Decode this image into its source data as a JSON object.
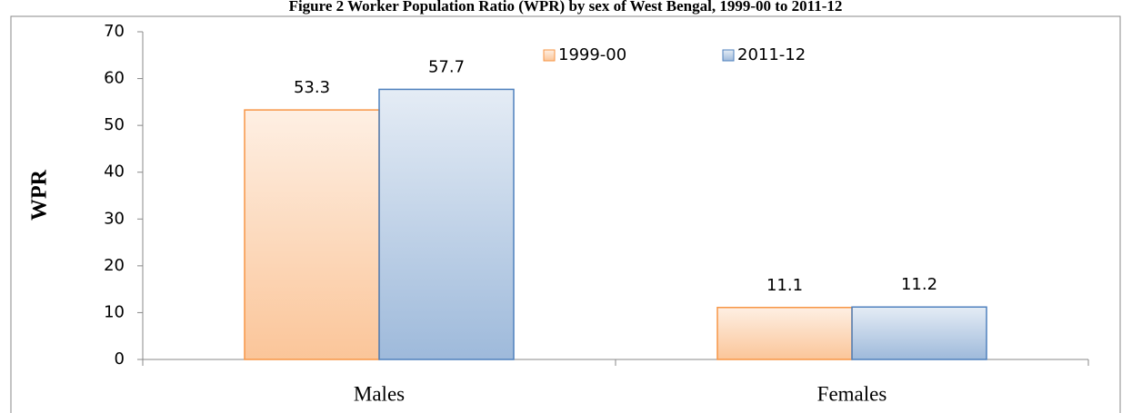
{
  "chart_data": {
    "type": "bar",
    "title": "Figure 2 Worker Population Ratio (WPR) by sex of West Bengal, 1999-00 to 2011-12",
    "y_label": "WPR",
    "categories": [
      "Males",
      "Females"
    ],
    "series": [
      {
        "name": "1999-00",
        "color": "#f79646",
        "values": [
          53.3,
          11.1
        ]
      },
      {
        "name": "2011-12",
        "color": "#4f81bd",
        "values": [
          57.7,
          11.2
        ]
      }
    ],
    "ylim": [
      0,
      70
    ],
    "yticks": [
      0,
      10,
      20,
      30,
      40,
      50,
      60,
      70
    ],
    "grid": false,
    "legend": "top"
  }
}
